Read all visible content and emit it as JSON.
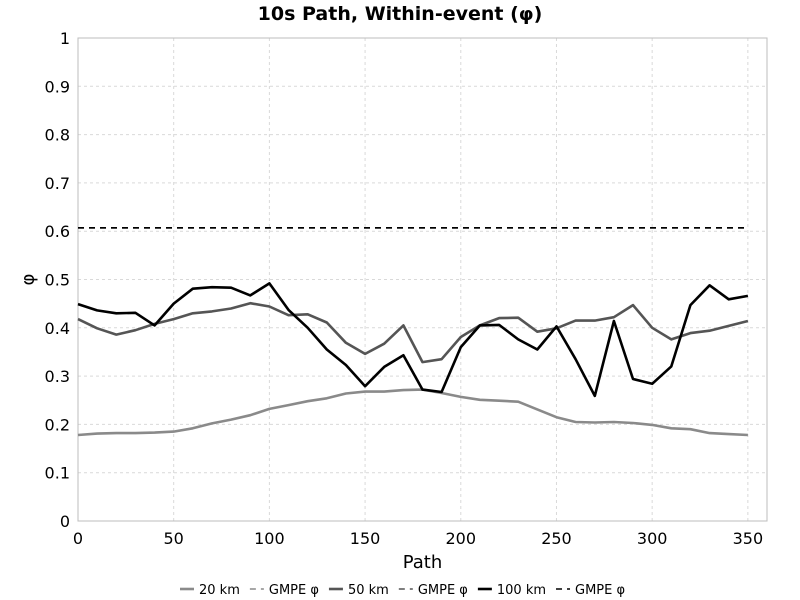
{
  "chart_data": {
    "type": "line",
    "title": "10s Path, Within-event (φ)",
    "xlabel": "Path",
    "ylabel": "φ",
    "xlim": [
      0,
      360
    ],
    "ylim": [
      0,
      1
    ],
    "xticks": [
      "0",
      "50",
      "100",
      "150",
      "200",
      "250",
      "300",
      "350"
    ],
    "yticks": [
      "0",
      "0.1",
      "0.2",
      "0.3",
      "0.4",
      "0.5",
      "0.6",
      "0.7",
      "0.8",
      "0.9",
      "1"
    ],
    "grid": true,
    "legend_position": "bottom",
    "x": [
      0,
      10,
      20,
      30,
      40,
      50,
      60,
      70,
      80,
      90,
      100,
      110,
      120,
      130,
      140,
      150,
      160,
      170,
      180,
      190,
      200,
      210,
      220,
      230,
      240,
      250,
      260,
      270,
      280,
      290,
      300,
      310,
      320,
      330,
      340,
      350
    ],
    "series": [
      {
        "name": "20 km",
        "color": "#8a8a8a",
        "dashed": false,
        "values": [
          0.178,
          0.181,
          0.182,
          0.182,
          0.183,
          0.185,
          0.192,
          0.202,
          0.21,
          0.219,
          0.232,
          0.24,
          0.248,
          0.254,
          0.264,
          0.268,
          0.268,
          0.271,
          0.272,
          0.265,
          0.257,
          0.251,
          0.249,
          0.247,
          0.231,
          0.215,
          0.205,
          0.204,
          0.205,
          0.203,
          0.199,
          0.192,
          0.19,
          0.182,
          0.18,
          0.178
        ]
      },
      {
        "name": "GMPE φ",
        "color": "#8a8a8a",
        "dashed": true,
        "values": [
          0.607,
          0.607,
          0.607,
          0.607,
          0.607,
          0.607,
          0.607,
          0.607,
          0.607,
          0.607,
          0.607,
          0.607,
          0.607,
          0.607,
          0.607,
          0.607,
          0.607,
          0.607,
          0.607,
          0.607,
          0.607,
          0.607,
          0.607,
          0.607,
          0.607,
          0.607,
          0.607,
          0.607,
          0.607,
          0.607,
          0.607,
          0.607,
          0.607,
          0.607,
          0.607,
          0.607
        ]
      },
      {
        "name": "50 km",
        "color": "#555555",
        "dashed": false,
        "values": [
          0.418,
          0.399,
          0.386,
          0.395,
          0.408,
          0.418,
          0.43,
          0.434,
          0.44,
          0.451,
          0.444,
          0.426,
          0.428,
          0.411,
          0.369,
          0.346,
          0.367,
          0.405,
          0.329,
          0.335,
          0.381,
          0.405,
          0.42,
          0.421,
          0.392,
          0.399,
          0.415,
          0.415,
          0.422,
          0.447,
          0.4,
          0.376,
          0.389,
          0.394,
          0.404,
          0.414
        ]
      },
      {
        "name": "GMPE φ",
        "color": "#555555",
        "dashed": true,
        "values": [
          0.607,
          0.607,
          0.607,
          0.607,
          0.607,
          0.607,
          0.607,
          0.607,
          0.607,
          0.607,
          0.607,
          0.607,
          0.607,
          0.607,
          0.607,
          0.607,
          0.607,
          0.607,
          0.607,
          0.607,
          0.607,
          0.607,
          0.607,
          0.607,
          0.607,
          0.607,
          0.607,
          0.607,
          0.607,
          0.607,
          0.607,
          0.607,
          0.607,
          0.607,
          0.607,
          0.607
        ]
      },
      {
        "name": "100 km",
        "color": "#000000",
        "dashed": false,
        "values": [
          0.449,
          0.436,
          0.43,
          0.431,
          0.405,
          0.45,
          0.481,
          0.484,
          0.483,
          0.467,
          0.492,
          0.437,
          0.4,
          0.355,
          0.323,
          0.279,
          0.319,
          0.343,
          0.272,
          0.267,
          0.36,
          0.405,
          0.406,
          0.376,
          0.355,
          0.403,
          0.335,
          0.259,
          0.414,
          0.294,
          0.284,
          0.32,
          0.447,
          0.488,
          0.459,
          0.466
        ]
      },
      {
        "name": "GMPE φ",
        "color": "#000000",
        "dashed": true,
        "values": [
          0.607,
          0.607,
          0.607,
          0.607,
          0.607,
          0.607,
          0.607,
          0.607,
          0.607,
          0.607,
          0.607,
          0.607,
          0.607,
          0.607,
          0.607,
          0.607,
          0.607,
          0.607,
          0.607,
          0.607,
          0.607,
          0.607,
          0.607,
          0.607,
          0.607,
          0.607,
          0.607,
          0.607,
          0.607,
          0.607,
          0.607,
          0.607,
          0.607,
          0.607,
          0.607,
          0.607
        ]
      }
    ]
  }
}
